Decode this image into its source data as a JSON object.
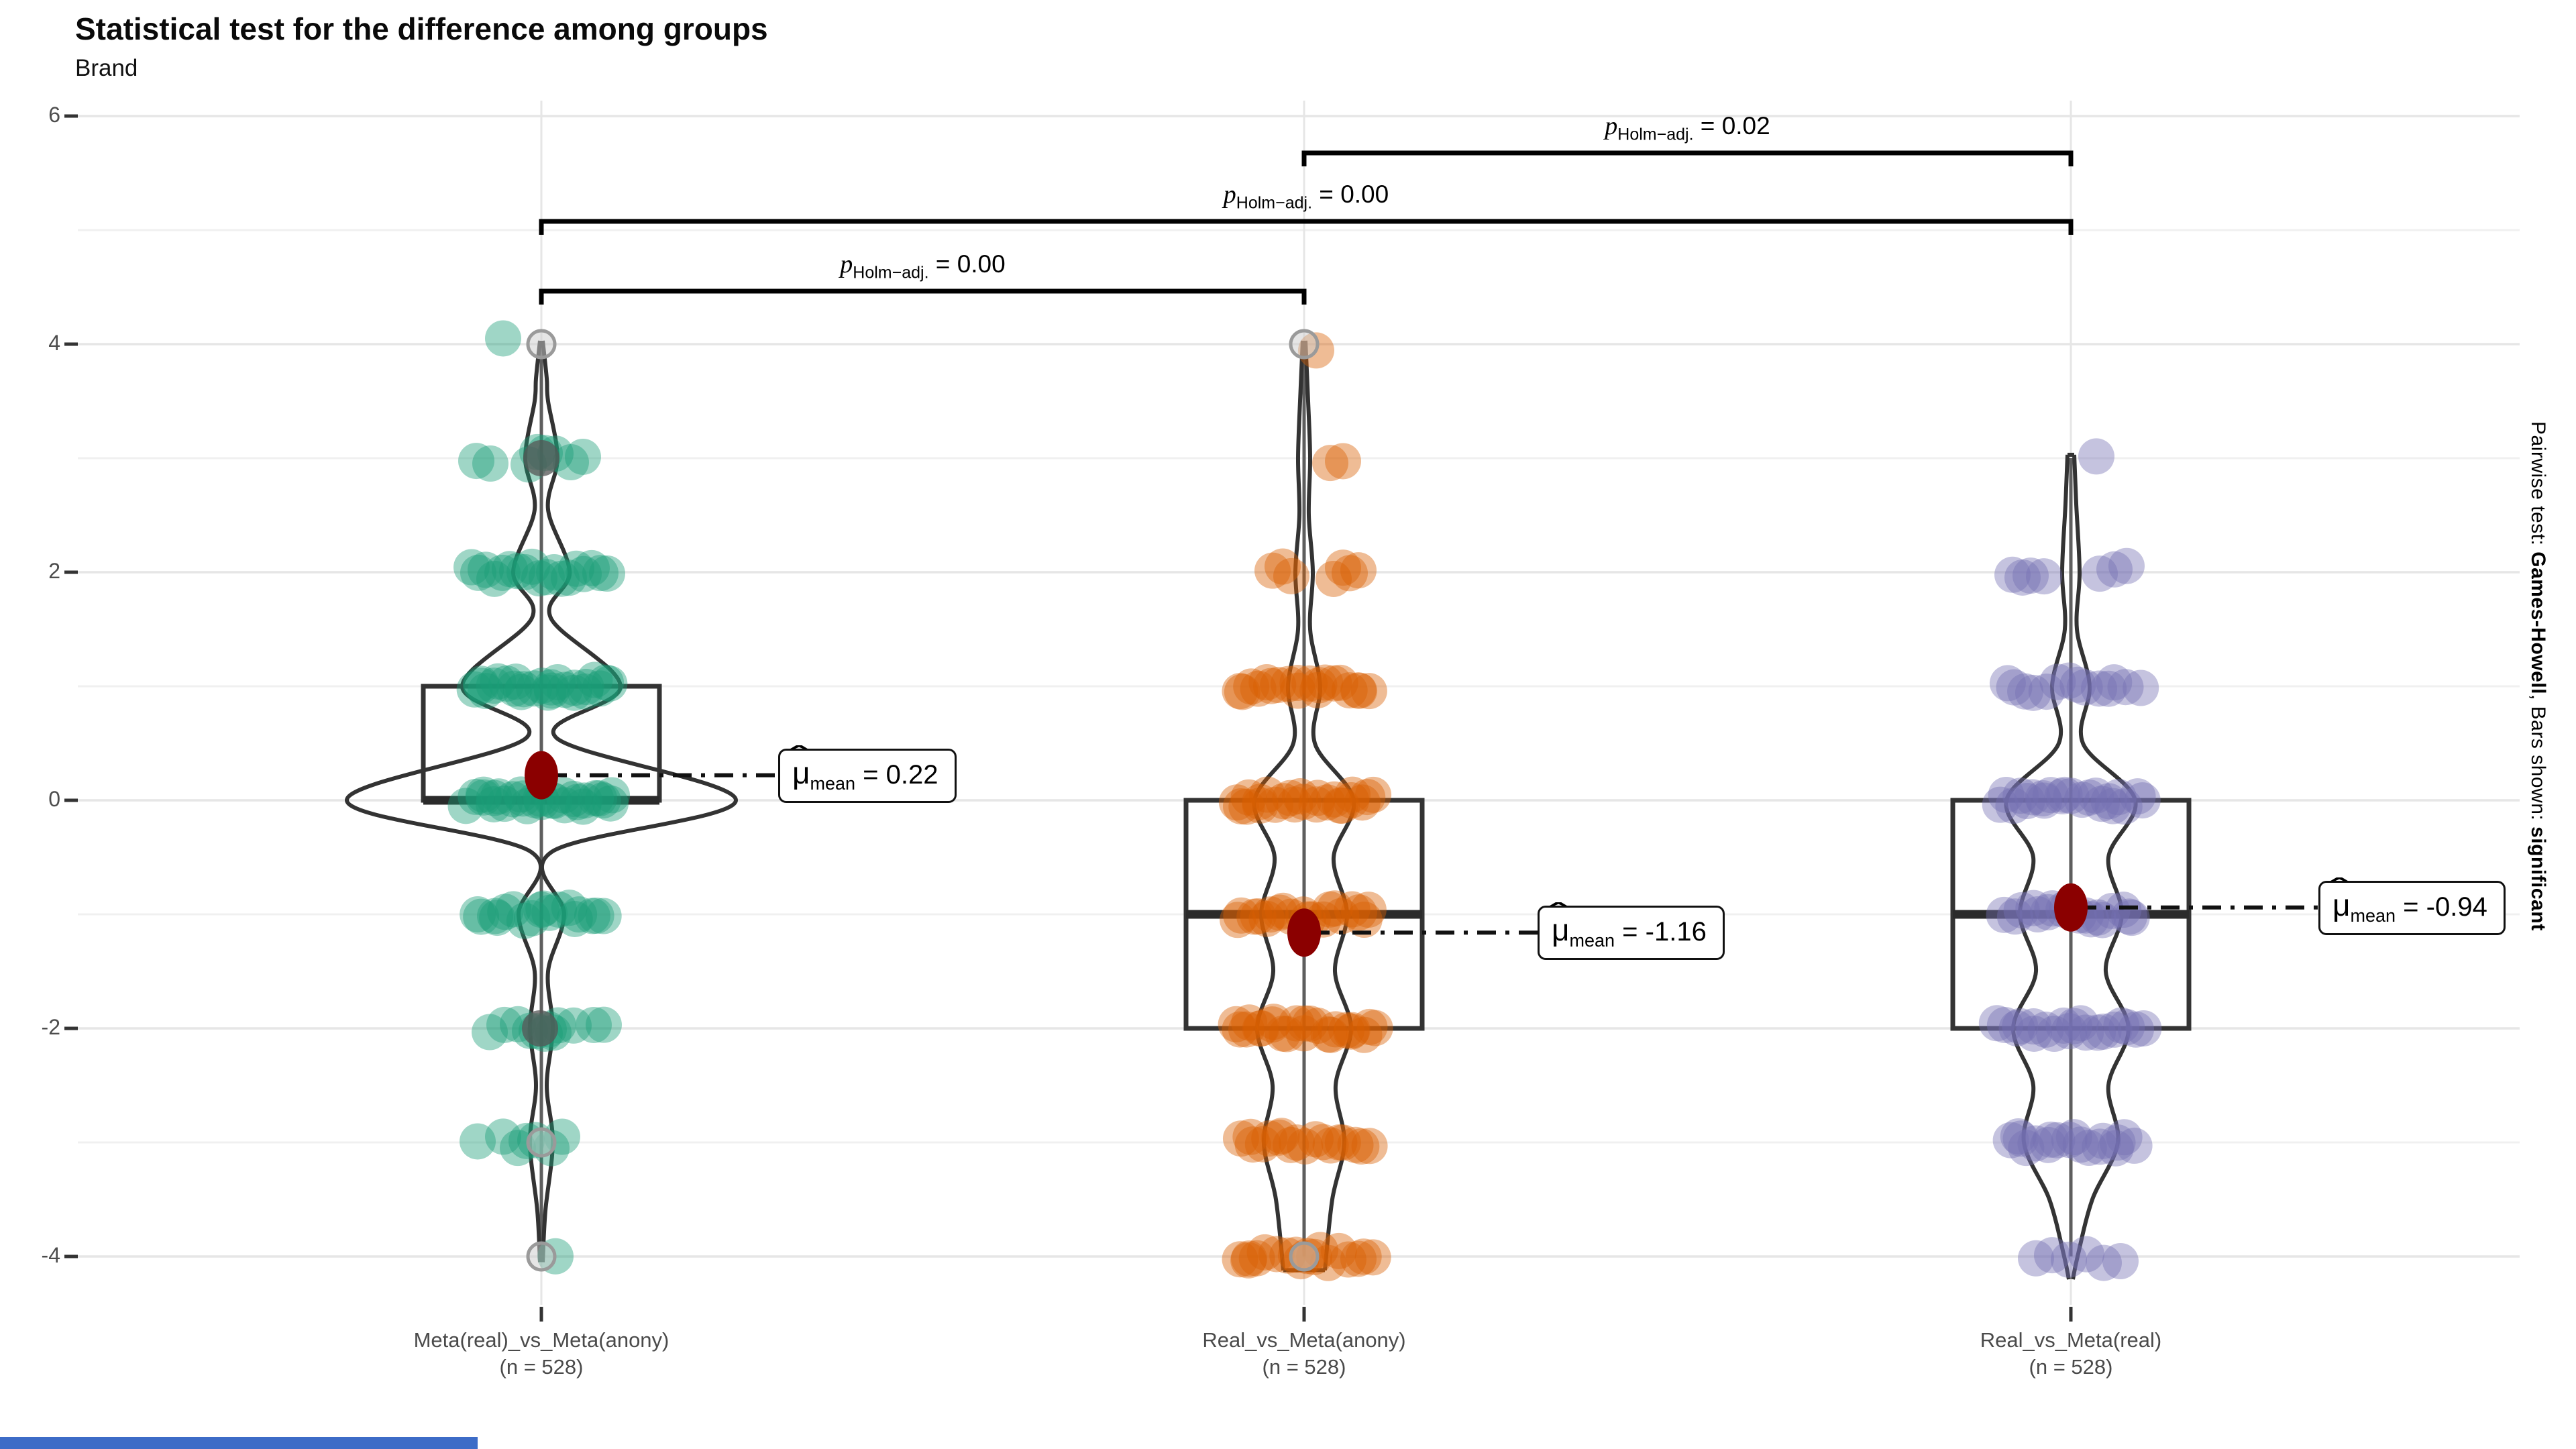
{
  "title": "Statistical test for the difference among groups",
  "subtitle": "Brand",
  "right_caption": {
    "pre": "Pairwise test: ",
    "test": "Games-Howell",
    "mid": ", Bars shown: ",
    "emph": "significant"
  },
  "mu_label": {
    "symbol": "μ",
    "hat": "ˆ",
    "sub": "mean",
    "eq": " = "
  },
  "footer_bar": {
    "color": "#3D6CC7"
  },
  "chart_data": {
    "type": "violin+box+jitter",
    "title": "Statistical test for the difference among groups",
    "subtitle": "Brand",
    "ylim": [
      -4.6,
      6.3
    ],
    "y_major_ticks": [
      6,
      4,
      2,
      0,
      -2,
      -4
    ],
    "y_minor_ticks": [
      5,
      3,
      1,
      -1,
      -3
    ],
    "grid": "on",
    "p_prefix": "p",
    "p_sub": "Holm−adj.",
    "p_eq": " = ",
    "colors": {
      "mean_dot": "#8B0000",
      "violin_stroke": "#333333",
      "box_stroke": "#333333",
      "whisker": "#5e5e5e",
      "grid_major": "#e6e6e6",
      "grid_minor": "#f0f0f0",
      "tick_mark": "#333333",
      "gray_dot": "#555555",
      "gray_ring": "#9a9a9a"
    },
    "groups": [
      {
        "x_label_line1": "Meta(real)_vs_Meta(anony)",
        "x_label_line2": "(n = 528)",
        "n": 528,
        "point_color": "#1B9E77",
        "mean": 0.22,
        "mean_text": "0.22",
        "box": {
          "q1": 0,
          "median": 0,
          "q3": 1,
          "lo": -4,
          "hi": 4
        },
        "violin_profile": [
          [
            4.03,
            2
          ],
          [
            3.7,
            8
          ],
          [
            3.5,
            10
          ],
          [
            3.0,
            24
          ],
          [
            2.55,
            10
          ],
          [
            2.0,
            42
          ],
          [
            1.6,
            14
          ],
          [
            1.0,
            118
          ],
          [
            0.55,
            22
          ],
          [
            0.0,
            290
          ],
          [
            -0.45,
            16
          ],
          [
            -1.0,
            34
          ],
          [
            -1.5,
            10
          ],
          [
            -2.0,
            17
          ],
          [
            -2.5,
            8
          ],
          [
            -3.0,
            17
          ],
          [
            -3.6,
            6
          ],
          [
            -4.05,
            2
          ]
        ],
        "flat_top": false,
        "flat_bottom": false,
        "rows": [
          {
            "v": 4,
            "dx": [
              -57
            ]
          },
          {
            "v": 3,
            "dx": [
              -97,
              -76,
              -19,
              -6,
              5,
              21,
              44,
              62
            ]
          },
          {
            "v": 2,
            "dx": [
              -104,
              -94,
              -83,
              -70,
              -58,
              -47,
              -36,
              -25,
              -14,
              -3,
              8,
              19,
              30,
              41,
              52,
              63,
              75,
              88,
              98
            ]
          },
          {
            "v": 1,
            "spread": 104,
            "n": 26
          },
          {
            "v": 0,
            "spread": 108,
            "n": 28
          },
          {
            "v": -1,
            "spread": 96,
            "n": 18
          },
          {
            "v": -2,
            "dx": [
              -77,
              -55,
              -35,
              -17,
              -7,
              5,
              11,
              18,
              25,
              48,
              78,
              93
            ]
          },
          {
            "v": -3,
            "dx": [
              -95,
              -57,
              -35,
              -22,
              -9,
              15,
              31
            ]
          },
          {
            "v": -4,
            "dx": [
              21
            ]
          }
        ],
        "gray_dots": [
          {
            "v": 3,
            "dx": 0
          },
          {
            "v": -2,
            "dx": -2
          }
        ],
        "gray_rings": [
          {
            "v": 4,
            "dx": 0
          },
          {
            "v": -3,
            "dx": 0
          },
          {
            "v": -4,
            "dx": 0
          }
        ],
        "mean_label_x": 1160
      },
      {
        "x_label_line1": "Real_vs_Meta(anony)",
        "x_label_line2": "(n = 528)",
        "n": 528,
        "point_color": "#D95F02",
        "mean": -1.16,
        "mean_text": "-1.16",
        "box": {
          "q1": -2,
          "median": -1,
          "q3": 0,
          "lo": -4,
          "hi": 4
        },
        "violin_profile": [
          [
            4.03,
            2
          ],
          [
            3.5,
            6
          ],
          [
            3.0,
            9
          ],
          [
            2.5,
            7
          ],
          [
            2.0,
            13
          ],
          [
            1.5,
            9
          ],
          [
            1.0,
            24
          ],
          [
            0.5,
            16
          ],
          [
            0.0,
            74
          ],
          [
            -0.5,
            44
          ],
          [
            -1.0,
            64
          ],
          [
            -1.5,
            46
          ],
          [
            -2.0,
            70
          ],
          [
            -2.5,
            47
          ],
          [
            -3.0,
            60
          ],
          [
            -3.5,
            42
          ],
          [
            -4.12,
            31
          ]
        ],
        "flat_top": false,
        "flat_bottom": true,
        "rows": [
          {
            "v": 4,
            "dx": [
              18
            ]
          },
          {
            "v": 3,
            "dx": [
              39,
              58
            ]
          },
          {
            "v": 2,
            "dx": [
              -47,
              -32,
              -19,
              44,
              58,
              68,
              81
            ]
          },
          {
            "v": 1,
            "spread": 98,
            "n": 20
          },
          {
            "v": 0,
            "spread": 105,
            "n": 24
          },
          {
            "v": -1,
            "spread": 100,
            "n": 20
          },
          {
            "v": -2,
            "spread": 105,
            "n": 24
          },
          {
            "v": -3,
            "spread": 95,
            "n": 18
          },
          {
            "v": -4,
            "spread": 100,
            "n": 18
          }
        ],
        "gray_dots": [],
        "gray_rings": [
          {
            "v": 4,
            "dx": 0
          },
          {
            "v": -4,
            "dx": 0
          }
        ],
        "mean_label_x": 2292
      },
      {
        "x_label_line1": "Real_vs_Meta(real)",
        "x_label_line2": "(n = 528)",
        "n": 528,
        "point_color": "#7570B3",
        "mean": -0.94,
        "mean_text": "-0.94",
        "box": {
          "q1": -2,
          "median": -1,
          "q3": 0,
          "lo": -4,
          "hi": 3
        },
        "violin_profile": [
          [
            3.03,
            5
          ],
          [
            2.6,
            8
          ],
          [
            2.0,
            13
          ],
          [
            1.5,
            9
          ],
          [
            1.0,
            28
          ],
          [
            0.5,
            18
          ],
          [
            0.0,
            96
          ],
          [
            -0.5,
            56
          ],
          [
            -1.0,
            76
          ],
          [
            -1.5,
            52
          ],
          [
            -2.0,
            86
          ],
          [
            -2.5,
            56
          ],
          [
            -3.0,
            70
          ],
          [
            -3.5,
            32
          ],
          [
            -4.0,
            10
          ],
          [
            -4.2,
            3
          ]
        ],
        "flat_top": true,
        "flat_bottom": false,
        "rows": [
          {
            "v": 3,
            "dx": [
              38
            ]
          },
          {
            "v": 2,
            "dx": [
              -87,
              -72,
              -60,
              -40,
              43,
              65,
              83
            ]
          },
          {
            "v": 1,
            "spread": 100,
            "n": 14
          },
          {
            "v": 0,
            "spread": 105,
            "n": 22
          },
          {
            "v": -1,
            "spread": 95,
            "n": 18
          },
          {
            "v": -2,
            "spread": 105,
            "n": 20
          },
          {
            "v": -3,
            "spread": 95,
            "n": 18
          },
          {
            "v": -4,
            "dx": [
              -52,
              -28,
              -3,
              23,
              49,
              74
            ]
          }
        ],
        "gray_dots": [],
        "gray_rings": [],
        "mean_label_x": 3456
      }
    ],
    "comparisons": [
      {
        "a": 0,
        "b": 1,
        "p_text": "0.00",
        "bar_y": 434
      },
      {
        "a": 0,
        "b": 2,
        "p_text": "0.00",
        "bar_y": 330
      },
      {
        "a": 1,
        "b": 2,
        "p_text": "0.02",
        "bar_y": 228
      }
    ]
  }
}
